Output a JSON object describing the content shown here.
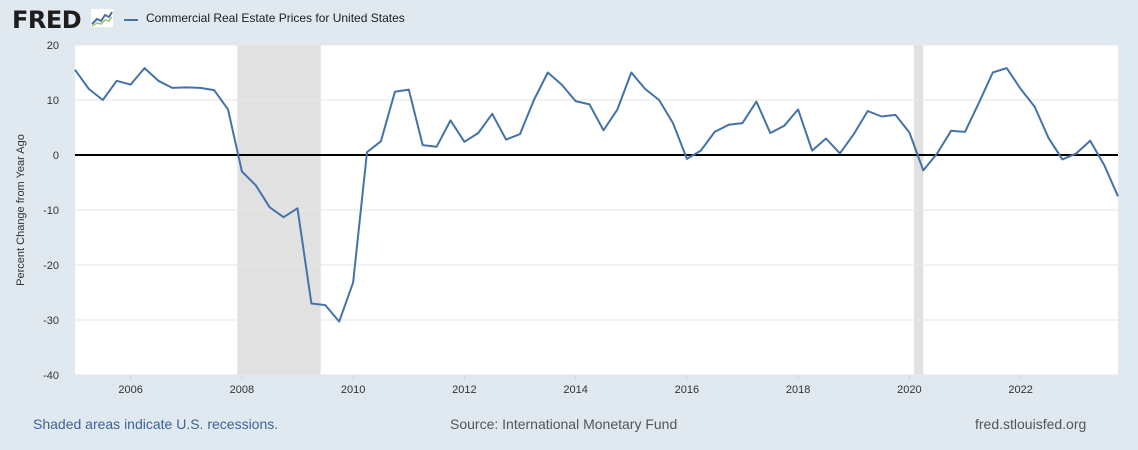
{
  "header": {
    "logo_text": "FRED",
    "logo_icon": "line-chart-icon"
  },
  "colors": {
    "background": "#e1e9f0",
    "plot_background": "#ffffff",
    "series": "#4572a7",
    "recession": "#e1e1e1",
    "zero_line": "#000000",
    "grid": "#e6e6e6"
  },
  "chart_data": {
    "type": "line",
    "series": [
      {
        "name": "Commercial Real Estate Prices for United States",
        "x_start": 2005.0,
        "x_step": 0.25,
        "values": [
          15.5,
          12.0,
          10.0,
          13.5,
          12.8,
          15.8,
          13.5,
          12.2,
          12.3,
          12.2,
          11.8,
          8.3,
          -3.0,
          -5.5,
          -9.5,
          -11.3,
          -9.7,
          -27.0,
          -27.3,
          -30.3,
          -23.2,
          0.5,
          2.5,
          11.5,
          11.9,
          1.8,
          1.5,
          6.3,
          2.4,
          4.0,
          7.5,
          2.8,
          3.8,
          10.0,
          15.0,
          12.8,
          9.8,
          9.2,
          4.5,
          8.3,
          15.0,
          12.0,
          10.0,
          5.8,
          -0.7,
          0.8,
          4.2,
          5.5,
          5.8,
          9.7,
          4.0,
          5.3,
          8.3,
          0.8,
          3.0,
          0.3,
          3.8,
          8.0,
          7.0,
          7.3,
          4.1,
          -2.8,
          0.3,
          4.4,
          4.2,
          9.5,
          15.0,
          15.8,
          12.0,
          8.8,
          3.1,
          -0.8,
          0.3,
          2.6,
          -1.8,
          -7.5
        ]
      }
    ],
    "recessions": [
      [
        2007.917,
        2009.417
      ],
      [
        2020.083,
        2020.25
      ]
    ],
    "x_range": [
      2005.0,
      2023.75
    ],
    "x_ticks": [
      2006,
      2008,
      2010,
      2012,
      2014,
      2016,
      2018,
      2020,
      2022
    ],
    "x_tick_labels": [
      "2006",
      "2008",
      "2010",
      "2012",
      "2014",
      "2016",
      "2018",
      "2020",
      "2022"
    ],
    "ylim": [
      -40,
      20
    ],
    "y_ticks": [
      -40,
      -30,
      -20,
      -10,
      0,
      10,
      20
    ],
    "y_tick_labels": [
      "-40",
      "-30",
      "-20",
      "-10",
      "0",
      "10",
      "20"
    ],
    "ylabel": "Percent Change from Year Ago",
    "xlabel": "",
    "grid": true,
    "legend_position": "top-left"
  },
  "footer": {
    "recession_note": "Shaded areas indicate U.S. recessions.",
    "source": "Source: International Monetary Fund",
    "site": "fred.stlouisfed.org"
  }
}
